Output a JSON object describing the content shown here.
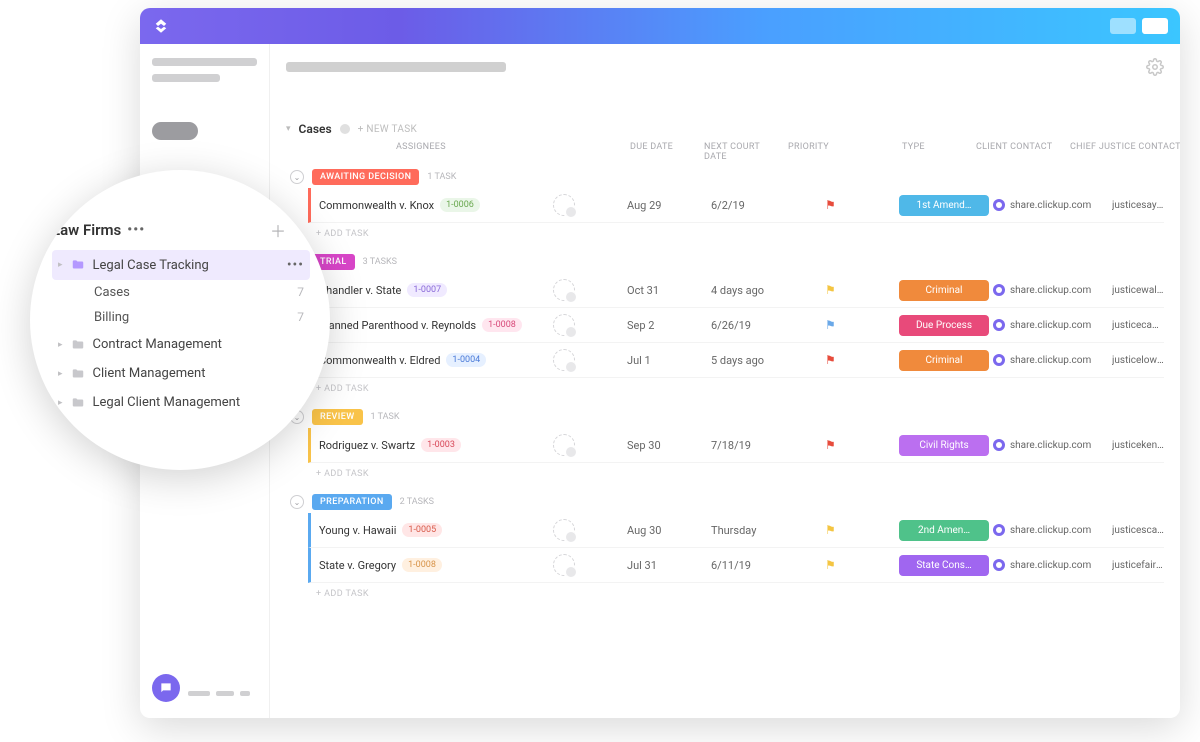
{
  "app": {
    "section_title": "Cases",
    "new_task_label": "+ NEW TASK",
    "add_task_label": "+ ADD TASK",
    "columns": [
      "ASSIGNEES",
      "DUE DATE",
      "NEXT COURT DATE",
      "PRIORITY",
      "TYPE",
      "CLIENT CONTACT",
      "CHIEF JUSTICE CONTACT"
    ]
  },
  "colors": {
    "gradient_start": "#7b68ee",
    "gradient_end": "#3bc6ff",
    "awaiting": "#ff6b5b",
    "trial": "#d846c8",
    "review": "#f9c349",
    "preparation": "#5aa9f0",
    "type_1st": "#4fb8e8",
    "type_criminal": "#f08a3c",
    "type_due_process": "#e84a7a",
    "type_civil_rights": "#bb6ff0",
    "type_2nd": "#4fc28a",
    "type_state_cons": "#a066f0",
    "flag_red": "#e74c3c",
    "flag_yellow": "#f4c542",
    "flag_blue": "#6aa8e8"
  },
  "groups": [
    {
      "status": "AWAITING DECISION",
      "color_key": "awaiting",
      "task_count": "1 TASK",
      "rows": [
        {
          "name": "Commonwealth v. Knox",
          "case_id": "1-0006",
          "id_bg": "#eaf6e8",
          "id_fg": "#6aa84f",
          "due": "Aug 29",
          "court": "6/2/19",
          "flag": "flag_red",
          "type": "1st Amend…",
          "type_key": "type_1st",
          "contact": "share.clickup.com",
          "cj": "justicesaylor@example.com"
        }
      ]
    },
    {
      "status": "TRIAL",
      "color_key": "trial",
      "task_count": "3 TASKS",
      "rows": [
        {
          "name": "Chandler v. State",
          "case_id": "1-0007",
          "id_bg": "#f0eaff",
          "id_fg": "#8a6ad8",
          "due": "Oct 31",
          "court": "4 days ago",
          "flag": "flag_yellow",
          "type": "Criminal",
          "type_key": "type_criminal",
          "contact": "share.clickup.com",
          "cj": "justicewaller@example.com"
        },
        {
          "name": "Planned Parenthood v. Reynolds",
          "case_id": "1-0008",
          "id_bg": "#ffe6ef",
          "id_fg": "#d84a7a",
          "due": "Sep 2",
          "court": "6/26/19",
          "flag": "flag_blue",
          "type": "Due Process",
          "type_key": "type_due_process",
          "contact": "share.clickup.com",
          "cj": "justicecady@example.com"
        },
        {
          "name": "Commonwealth v. Eldred",
          "case_id": "1-0004",
          "id_bg": "#e6f0ff",
          "id_fg": "#4a7ad8",
          "due": "Jul 1",
          "court": "5 days ago",
          "flag": "flag_red",
          "type": "Criminal",
          "type_key": "type_criminal",
          "contact": "share.clickup.com",
          "cj": "justicelowy@example.com"
        }
      ]
    },
    {
      "status": "REVIEW",
      "color_key": "review",
      "task_count": "1 TASK",
      "rows": [
        {
          "name": "Rodriguez v. Swartz",
          "case_id": "1-0003",
          "id_bg": "#ffe6ea",
          "id_fg": "#d84a5a",
          "due": "Sep 30",
          "court": "7/18/19",
          "flag": "flag_red",
          "type": "Civil Rights",
          "type_key": "type_civil_rights",
          "contact": "share.clickup.com",
          "cj": "justicekennedy@example.com"
        }
      ]
    },
    {
      "status": "PREPARATION",
      "color_key": "preparation",
      "task_count": "2 TASKS",
      "rows": [
        {
          "name": "Young v. Hawaii",
          "case_id": "1-0005",
          "id_bg": "#ffe6e6",
          "id_fg": "#d85a4a",
          "due": "Aug 30",
          "court": "Thursday",
          "flag": "flag_yellow",
          "type": "2nd Amen…",
          "type_key": "type_2nd",
          "contact": "share.clickup.com",
          "cj": "justicescalia@example.com"
        },
        {
          "name": "State v. Gregory",
          "case_id": "1-0008",
          "id_bg": "#fff0e0",
          "id_fg": "#d8944a",
          "due": "Jul 31",
          "court": "6/11/19",
          "flag": "flag_yellow",
          "type": "State Cons…",
          "type_key": "type_state_cons",
          "contact": "share.clickup.com",
          "cj": "justicefairhurst@example.com"
        }
      ]
    }
  ],
  "sidebar": {
    "title": "Law Firms",
    "items": [
      {
        "label": "Legal Case Tracking",
        "active": true,
        "icon": "folder-purple",
        "children": [
          {
            "label": "Cases",
            "count": "7"
          },
          {
            "label": "Billing",
            "count": "7"
          }
        ]
      },
      {
        "label": "Contract Management",
        "icon": "folder-grey"
      },
      {
        "label": "Client Management",
        "icon": "folder-grey"
      },
      {
        "label": "Legal Client Management",
        "icon": "folder-grey"
      }
    ]
  }
}
